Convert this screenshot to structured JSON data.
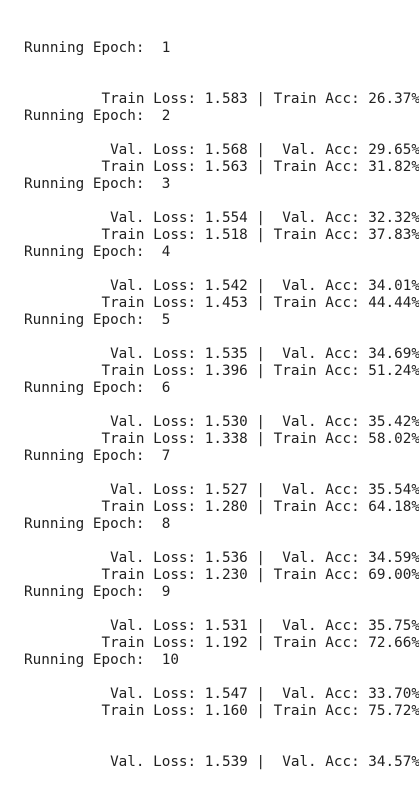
{
  "output": {
    "epochs": [
      {
        "header": "Running Epoch:  1",
        "train": "         Train Loss: 1.583 | Train Acc: 26.37%",
        "val": "          Val. Loss: 1.568 |  Val. Acc: 29.65%"
      },
      {
        "header": "Running Epoch:  2",
        "train": "         Train Loss: 1.563 | Train Acc: 31.82%",
        "val": "          Val. Loss: 1.554 |  Val. Acc: 32.32%"
      },
      {
        "header": "Running Epoch:  3",
        "train": "         Train Loss: 1.518 | Train Acc: 37.83%",
        "val": "          Val. Loss: 1.542 |  Val. Acc: 34.01%"
      },
      {
        "header": "Running Epoch:  4",
        "train": "         Train Loss: 1.453 | Train Acc: 44.44%",
        "val": "          Val. Loss: 1.535 |  Val. Acc: 34.69%"
      },
      {
        "header": "Running Epoch:  5",
        "train": "         Train Loss: 1.396 | Train Acc: 51.24%",
        "val": "          Val. Loss: 1.530 |  Val. Acc: 35.42%"
      },
      {
        "header": "Running Epoch:  6",
        "train": "         Train Loss: 1.338 | Train Acc: 58.02%",
        "val": "          Val. Loss: 1.527 |  Val. Acc: 35.54%"
      },
      {
        "header": "Running Epoch:  7",
        "train": "         Train Loss: 1.280 | Train Acc: 64.18%",
        "val": "          Val. Loss: 1.536 |  Val. Acc: 34.59%"
      },
      {
        "header": "Running Epoch:  8",
        "train": "         Train Loss: 1.230 | Train Acc: 69.00%",
        "val": "          Val. Loss: 1.531 |  Val. Acc: 35.75%"
      },
      {
        "header": "Running Epoch:  9",
        "train": "         Train Loss: 1.192 | Train Acc: 72.66%",
        "val": "          Val. Loss: 1.547 |  Val. Acc: 33.70%"
      },
      {
        "header": "Running Epoch:  10",
        "train": "         Train Loss: 1.160 | Train Acc: 75.72%",
        "val": "          Val. Loss: 1.539 |  Val. Acc: 34.57%"
      }
    ]
  }
}
